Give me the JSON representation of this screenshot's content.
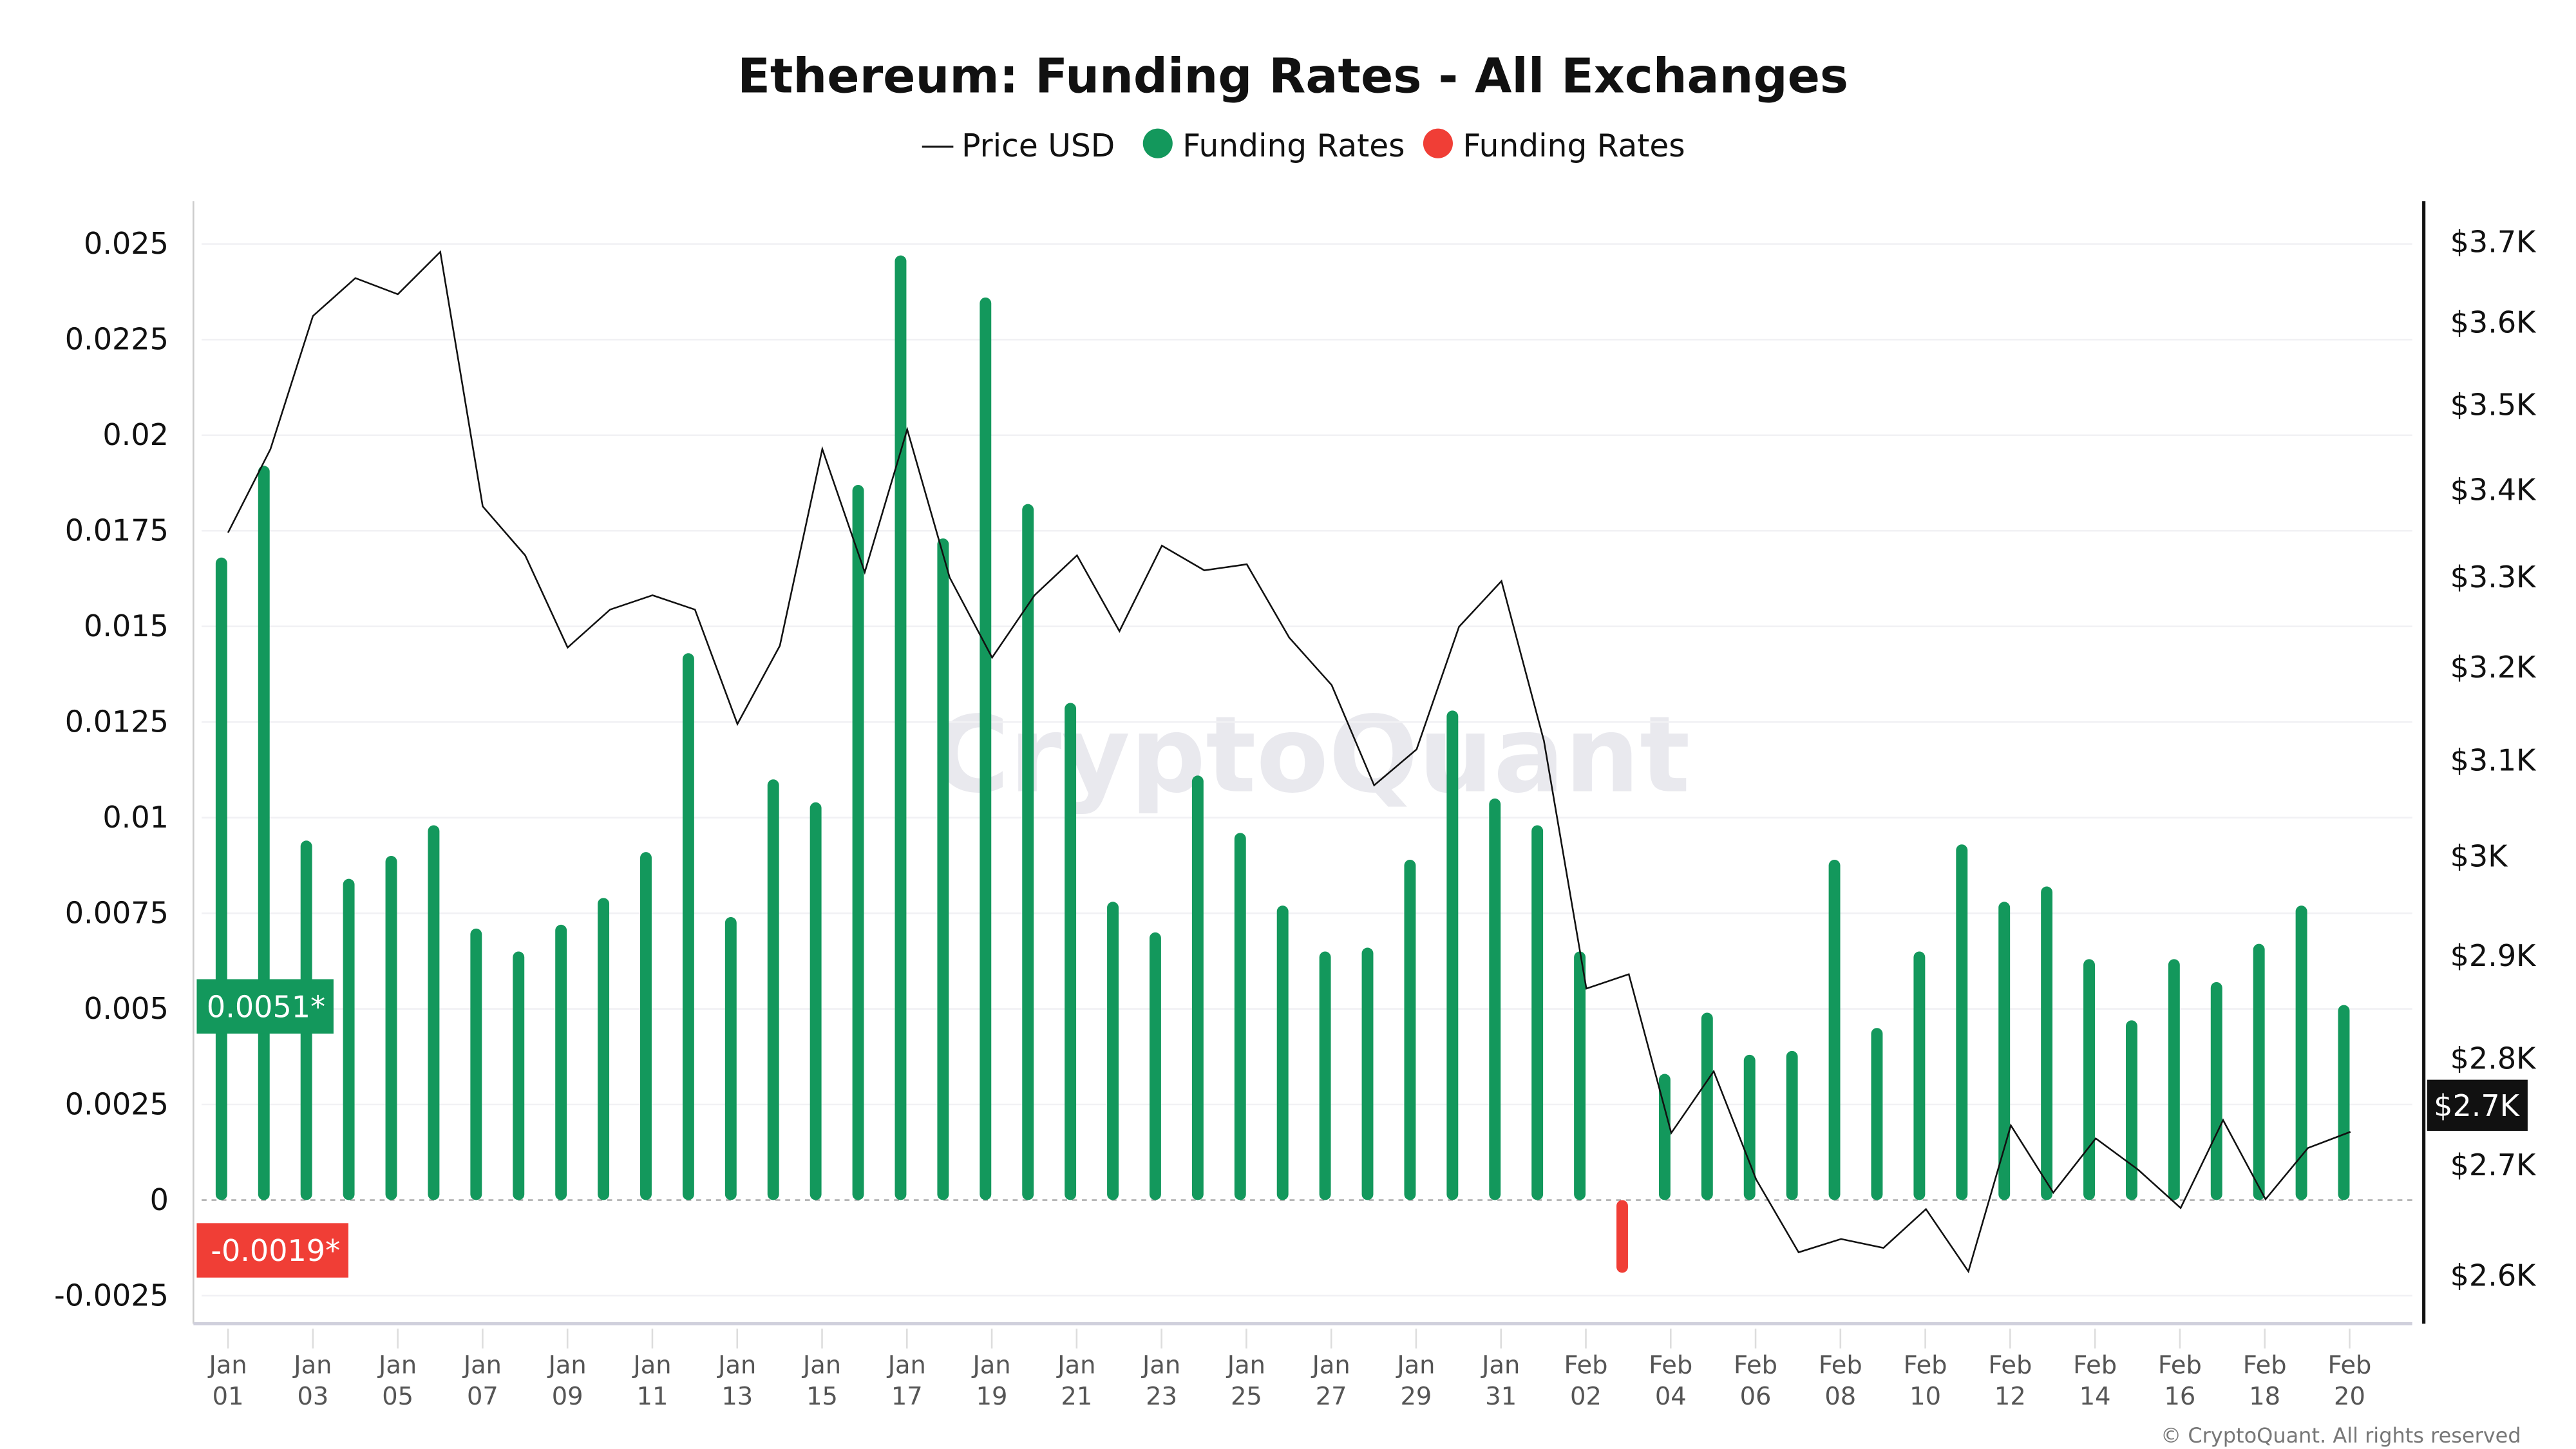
{
  "chart_data": {
    "type": "bar+line",
    "title": "Ethereum: Funding Rates - All Exchanges",
    "legend": [
      {
        "label": "Price USD",
        "marker": "line",
        "color": "#111111"
      },
      {
        "label": "Funding Rates",
        "marker": "dot",
        "color": "#13985c"
      },
      {
        "label": "Funding Rates",
        "marker": "dot",
        "color": "#f03e36"
      }
    ],
    "legend_position": "top-center",
    "grid": true,
    "x_tick_labels": [
      [
        "Jan",
        "01"
      ],
      [
        "Jan",
        "03"
      ],
      [
        "Jan",
        "05"
      ],
      [
        "Jan",
        "07"
      ],
      [
        "Jan",
        "09"
      ],
      [
        "Jan",
        "11"
      ],
      [
        "Jan",
        "13"
      ],
      [
        "Jan",
        "15"
      ],
      [
        "Jan",
        "17"
      ],
      [
        "Jan",
        "19"
      ],
      [
        "Jan",
        "21"
      ],
      [
        "Jan",
        "23"
      ],
      [
        "Jan",
        "25"
      ],
      [
        "Jan",
        "27"
      ],
      [
        "Jan",
        "29"
      ],
      [
        "Jan",
        "31"
      ],
      [
        "Feb",
        "02"
      ],
      [
        "Feb",
        "04"
      ],
      [
        "Feb",
        "06"
      ],
      [
        "Feb",
        "08"
      ],
      [
        "Feb",
        "10"
      ],
      [
        "Feb",
        "12"
      ],
      [
        "Feb",
        "14"
      ],
      [
        "Feb",
        "16"
      ],
      [
        "Feb",
        "18"
      ],
      [
        "Feb",
        "20"
      ]
    ],
    "y_left": {
      "ticks": [
        "0.025",
        "0.0225",
        "0.02",
        "0.0175",
        "0.015",
        "0.0125",
        "0.01",
        "0.0075",
        "0.005",
        "0.0025",
        "0",
        "-0.0025"
      ],
      "range": [
        -0.0025,
        0.026
      ]
    },
    "y_right": {
      "scale": "log",
      "ticks": [
        "$3.7K",
        "$3.6K",
        "$3.5K",
        "$3.4K",
        "$3.3K",
        "$3.2K",
        "$3.1K",
        "$3K",
        "$2.9K",
        "$2.8K",
        "$2.7K",
        "$2.6K"
      ],
      "tick_values": [
        3700,
        3600,
        3500,
        3400,
        3300,
        3200,
        3100,
        3000,
        2900,
        2800,
        2700,
        2600
      ],
      "range": [
        2600,
        3700
      ]
    },
    "dates": [
      "Jan 01",
      "Jan 02",
      "Jan 03",
      "Jan 04",
      "Jan 05",
      "Jan 06",
      "Jan 07",
      "Jan 08",
      "Jan 09",
      "Jan 10",
      "Jan 11",
      "Jan 12",
      "Jan 13",
      "Jan 14",
      "Jan 15",
      "Jan 16",
      "Jan 17",
      "Jan 18",
      "Jan 19",
      "Jan 20",
      "Jan 21",
      "Jan 22",
      "Jan 23",
      "Jan 24",
      "Jan 25",
      "Jan 26",
      "Jan 27",
      "Jan 28",
      "Jan 29",
      "Jan 30",
      "Jan 31",
      "Feb 01",
      "Feb 02",
      "Feb 03",
      "Feb 04",
      "Feb 05",
      "Feb 06",
      "Feb 07",
      "Feb 08",
      "Feb 09",
      "Feb 10",
      "Feb 11",
      "Feb 12",
      "Feb 13",
      "Feb 14",
      "Feb 15",
      "Feb 16",
      "Feb 17",
      "Feb 18",
      "Feb 19",
      "Feb 20"
    ],
    "series": [
      {
        "name": "Funding Rates",
        "axis": "left",
        "type": "bar",
        "positive_color": "#13985c",
        "negative_color": "#f03e36",
        "values": [
          0.0168,
          0.0192,
          0.0094,
          0.0084,
          0.009,
          0.0098,
          0.0071,
          0.0065,
          0.0072,
          0.0079,
          0.0091,
          0.0143,
          0.0074,
          0.011,
          0.0104,
          0.0187,
          0.0247,
          0.0173,
          0.0236,
          0.0182,
          0.013,
          0.0078,
          0.007,
          0.0111,
          0.0096,
          0.0077,
          0.0065,
          0.0066,
          0.0089,
          0.0128,
          0.0105,
          0.0098,
          0.0065,
          -0.0019,
          0.0033,
          0.0049,
          0.0038,
          0.0039,
          0.0089,
          0.0045,
          0.0065,
          0.0093,
          0.0078,
          0.0082,
          0.0063,
          0.0047,
          0.0063,
          0.0057,
          0.0067,
          0.0077,
          0.0051
        ]
      },
      {
        "name": "Price USD",
        "axis": "right",
        "type": "line",
        "color": "#111111",
        "values": [
          3351,
          3448,
          3608,
          3655,
          3635,
          3688,
          3381,
          3325,
          3222,
          3264,
          3280,
          3264,
          3139,
          3224,
          3448,
          3306,
          3471,
          3300,
          3211,
          3280,
          3325,
          3240,
          3336,
          3308,
          3315,
          3233,
          3181,
          3074,
          3112,
          3245,
          3296,
          3121,
          2868,
          2882,
          2730,
          2788,
          2687,
          2621,
          2633,
          2625,
          2660,
          2604,
          2737,
          2675,
          2725,
          2696,
          2661,
          2742,
          2669,
          2716,
          2731
        ]
      }
    ],
    "badges": {
      "max_rate": "0.0051*",
      "min_rate": "-0.0019*",
      "price": "$2.7K"
    },
    "watermark": "CryptoQuant",
    "copyright": "© CryptoQuant. All rights reserved"
  }
}
